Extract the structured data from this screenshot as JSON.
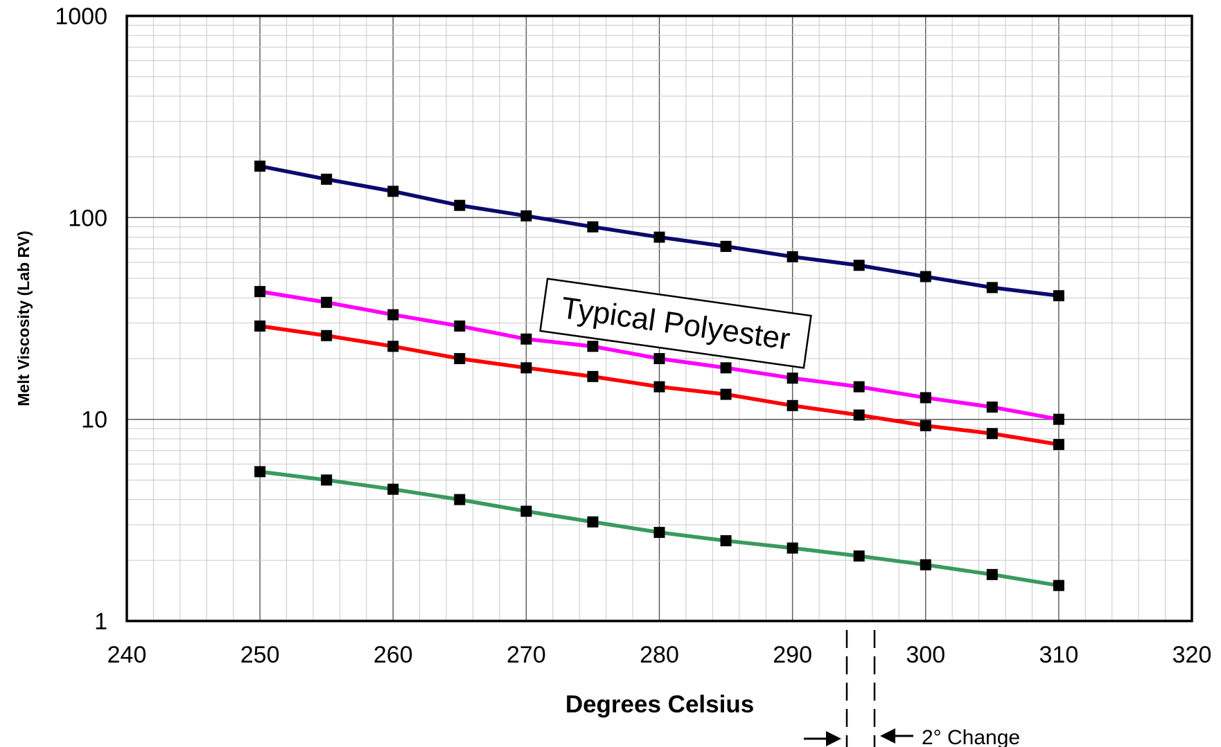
{
  "chart_data": {
    "type": "line",
    "title": "",
    "xlabel": "Degrees Celsius",
    "ylabel": "Melt Viscosity (Lab RV)",
    "xlim": [
      240,
      320
    ],
    "ylim": [
      1,
      1000
    ],
    "y_scale": "log",
    "grid": true,
    "x_ticks": [
      "240",
      "250",
      "260",
      "270",
      "280",
      "290",
      "300",
      "310",
      "320"
    ],
    "y_ticks": [
      "1",
      "10",
      "100",
      "1000"
    ],
    "x": [
      250,
      255,
      260,
      265,
      270,
      275,
      280,
      285,
      290,
      295,
      300,
      305,
      310
    ],
    "series": [
      {
        "color": "#0a0a6e",
        "values": [
          180,
          155,
          135,
          115,
          102,
          90,
          80,
          72,
          64,
          58,
          51,
          45,
          41
        ]
      },
      {
        "color": "#ff00ff",
        "values": [
          43,
          38,
          33,
          29,
          25,
          23,
          20,
          18,
          16,
          14.5,
          12.8,
          11.5,
          10
        ]
      },
      {
        "color": "#ff0000",
        "values": [
          29,
          26,
          23,
          20,
          18,
          16.3,
          14.5,
          13.3,
          11.7,
          10.5,
          9.3,
          8.5,
          7.5
        ]
      },
      {
        "color": "#3a9a5e",
        "values": [
          5.5,
          5,
          4.5,
          4,
          3.5,
          3.1,
          2.75,
          2.5,
          2.3,
          2.1,
          1.9,
          1.7,
          1.5
        ]
      }
    ],
    "annotations": {
      "label_box": "Typical Polyester",
      "change_note": "2° Change"
    }
  }
}
